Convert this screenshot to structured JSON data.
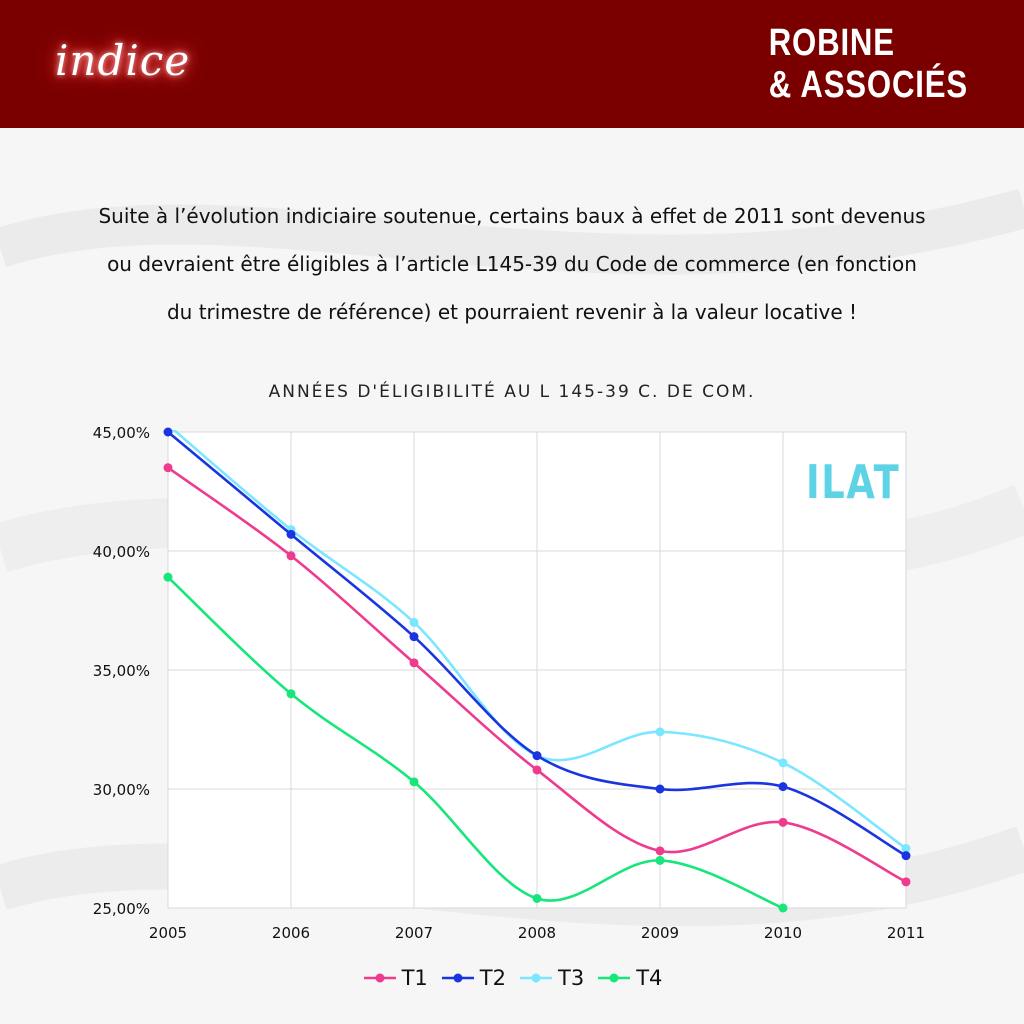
{
  "header": {
    "logo_text": "indice",
    "brand_line1": "ROBINE",
    "brand_line2": "& ASSOCIÉS",
    "banner_color": "#7a0000"
  },
  "intro": {
    "line1": "Suite à l’évolution indiciaire soutenue, certains baux à effet de 2011 sont devenus",
    "line2": "ou devraient être éligibles à l’article L145-39 du Code de commerce (en fonction",
    "line3": "du trimestre de référence) et pourraient revenir à la valeur locative  !"
  },
  "chart_data": {
    "type": "line",
    "title": "ANNÉES D'ÉLIGIBILITÉ AU L 145-39 C. DE COM.",
    "watermark": "ILAT",
    "x": [
      "2005",
      "2006",
      "2007",
      "2008",
      "2009",
      "2010",
      "2011"
    ],
    "ylim": [
      25,
      45
    ],
    "yticks": [
      25,
      30,
      35,
      40,
      45
    ],
    "ytick_labels": [
      "25,00%",
      "30,00%",
      "35,00%",
      "40,00%",
      "45,00%"
    ],
    "grid": true,
    "legend_position": "bottom-center",
    "series": [
      {
        "name": "T1",
        "color": "#ee3b8e",
        "values": [
          43.5,
          39.8,
          35.3,
          30.8,
          27.4,
          28.6,
          26.1
        ]
      },
      {
        "name": "T2",
        "color": "#1a35e0",
        "values": [
          45.0,
          40.7,
          36.4,
          31.4,
          30.0,
          30.1,
          27.2
        ]
      },
      {
        "name": "T3",
        "color": "#7ae6ff",
        "values": [
          45.3,
          40.9,
          37.0,
          31.4,
          32.4,
          31.1,
          27.5
        ]
      },
      {
        "name": "T4",
        "color": "#17e67a",
        "values": [
          38.9,
          34.0,
          30.3,
          25.4,
          27.0,
          25.0,
          null
        ]
      }
    ]
  }
}
